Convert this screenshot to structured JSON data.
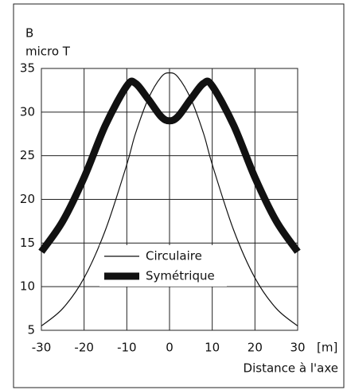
{
  "chart_data": {
    "type": "line",
    "ylabel_top": "B",
    "ylabel": "micro T",
    "xlabel": "Distance à l'axe",
    "xunit": "[m]",
    "x": [
      -30,
      -25,
      -20,
      -15,
      -10,
      -8,
      -5,
      -2,
      0,
      2,
      5,
      8,
      10,
      15,
      20,
      25,
      30
    ],
    "series": [
      {
        "name": "Circulaire",
        "color": "#111111",
        "width": 1.2,
        "values": [
          5.5,
          7.5,
          11,
          16.5,
          24,
          27.5,
          31.5,
          34,
          34.5,
          34,
          31.5,
          27.5,
          24,
          16.5,
          11,
          7.5,
          5.5
        ]
      },
      {
        "name": "Symétrique",
        "color": "#111111",
        "width": 9,
        "values": [
          14,
          17.5,
          22.5,
          28.5,
          33,
          33.3,
          31.5,
          29.5,
          29,
          29.5,
          31.5,
          33.3,
          33,
          28.5,
          22.5,
          17.5,
          14
        ]
      }
    ],
    "xlim": [
      -30,
      30
    ],
    "xticks": [
      -30,
      -20,
      -10,
      0,
      10,
      20,
      30
    ],
    "ylim": [
      5,
      35
    ],
    "yticks": [
      5,
      10,
      15,
      20,
      25,
      30,
      35
    ],
    "grid": true,
    "legend": "lower center"
  }
}
